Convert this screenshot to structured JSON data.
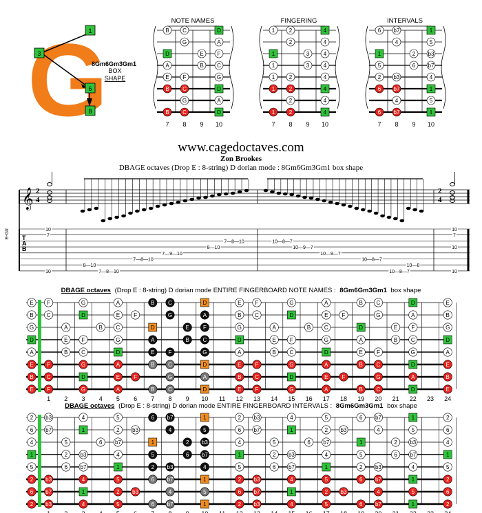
{
  "brand": {
    "letter": "G",
    "shape_label": "8Gm6Gm3Gm1",
    "box": "BOX",
    "shape": "SHAPE",
    "pointer_labels": [
      "1",
      "3",
      "6",
      "8"
    ],
    "color": "#f07d1a"
  },
  "mini_diagrams": [
    {
      "title": "NOTE NAMES",
      "frets": [
        "7",
        "8",
        "9",
        "10"
      ],
      "rows": [
        [
          [
            "w",
            "B"
          ],
          [
            "w",
            "C"
          ],
          null,
          [
            "g",
            "D"
          ]
        ],
        [
          null,
          [
            "w",
            "G"
          ],
          null,
          [
            "w",
            "A"
          ]
        ],
        [
          [
            "g",
            "D"
          ],
          null,
          [
            "w",
            "E"
          ],
          [
            "w",
            "F"
          ]
        ],
        [
          [
            "w",
            "A"
          ],
          null,
          [
            "w",
            "B"
          ],
          [
            "w",
            "C"
          ]
        ],
        [
          [
            "w",
            "E"
          ],
          [
            "w",
            "F"
          ],
          null,
          [
            "w",
            "G"
          ]
        ],
        [
          [
            "r",
            "B"
          ],
          [
            "r",
            "C"
          ],
          null,
          [
            "g",
            "D"
          ]
        ],
        [
          null,
          [
            "w",
            "G"
          ],
          null,
          [
            "w",
            "A"
          ]
        ],
        [
          [
            "r",
            "B"
          ],
          [
            "r",
            "C"
          ],
          null,
          [
            "g",
            "D"
          ]
        ]
      ]
    },
    {
      "title": "FINGERING",
      "frets": [
        "7",
        "8",
        "9",
        "10"
      ],
      "rows": [
        [
          [
            "w",
            "1"
          ],
          [
            "w",
            "2"
          ],
          null,
          [
            "g",
            "4"
          ]
        ],
        [
          null,
          [
            "w",
            "2"
          ],
          null,
          [
            "w",
            "4"
          ]
        ],
        [
          [
            "g",
            "1"
          ],
          null,
          [
            "w",
            "3"
          ],
          [
            "w",
            "4"
          ]
        ],
        [
          [
            "w",
            "1"
          ],
          null,
          [
            "w",
            "3"
          ],
          [
            "w",
            "4"
          ]
        ],
        [
          [
            "w",
            "1"
          ],
          [
            "w",
            "2"
          ],
          null,
          [
            "w",
            "4"
          ]
        ],
        [
          [
            "r",
            "1"
          ],
          [
            "r",
            "2"
          ],
          null,
          [
            "g",
            "4"
          ]
        ],
        [
          null,
          [
            "w",
            "2"
          ],
          null,
          [
            "w",
            "4"
          ]
        ],
        [
          [
            "r",
            "1"
          ],
          [
            "r",
            "2"
          ],
          null,
          [
            "g",
            "4"
          ]
        ]
      ]
    },
    {
      "title": "INTERVALS",
      "frets": [
        "7",
        "8",
        "9",
        "10"
      ],
      "rows": [
        [
          [
            "w",
            "6"
          ],
          [
            "w",
            "b7"
          ],
          null,
          [
            "g",
            "1"
          ]
        ],
        [
          null,
          [
            "w",
            "4"
          ],
          null,
          [
            "w",
            "5"
          ]
        ],
        [
          [
            "g",
            "1"
          ],
          null,
          [
            "w",
            "2"
          ],
          [
            "w",
            "b3"
          ]
        ],
        [
          [
            "w",
            "5"
          ],
          null,
          [
            "w",
            "6"
          ],
          [
            "w",
            "b7"
          ]
        ],
        [
          [
            "w",
            "2"
          ],
          [
            "w",
            "b3"
          ],
          null,
          [
            "w",
            "4"
          ]
        ],
        [
          [
            "r",
            "6"
          ],
          [
            "r",
            "b7"
          ],
          null,
          [
            "g",
            "1"
          ]
        ],
        [
          null,
          [
            "w",
            "4"
          ],
          null,
          [
            "w",
            "5"
          ]
        ],
        [
          [
            "r",
            "6"
          ],
          [
            "r",
            "b7"
          ],
          null,
          [
            "g",
            "1"
          ]
        ]
      ]
    }
  ],
  "header": {
    "site": "www.cagedoctaves.com",
    "author": "Zon Brookes",
    "subtitle": "DBAGE octaves (Drop E : 8-string) D dorian mode : 8Gm6Gm3Gm1 box shape"
  },
  "score": {
    "time_signature": [
      "2",
      "4"
    ],
    "tuning_label": "E-Gtr",
    "tab_letters": [
      "T",
      "A",
      "B"
    ],
    "tab_rows": [
      {
        "frets": [
          "10",
          "10"
        ]
      },
      {
        "frets": [
          "7",
          "7"
        ]
      },
      {
        "frets": [
          "7—8—10",
          "10—8—7"
        ]
      },
      {
        "frets": [
          "8—10",
          "10—9—7",
          "10"
        ]
      },
      {
        "frets": [
          "7—9—10",
          "10—9—7"
        ]
      },
      {
        "frets": [
          "7—8—10",
          "10—8—7"
        ]
      },
      {
        "frets": [
          "8—10",
          "10—8"
        ]
      },
      {
        "frets": [
          "10",
          "7—8—10",
          "10—8—7",
          "10"
        ]
      }
    ]
  },
  "board1": {
    "title_prefix": "DBAGE octaves",
    "title_mode": "(Drop E : 8-string) D dorian mode ENTIRE FINGERBOARD NOTE NAMES :",
    "title_shape": "8Gm6Gm3Gm1",
    "title_suffix": "box shape",
    "rows": [
      [
        "E",
        "F",
        "G",
        "A",
        "B",
        "C",
        "D",
        "E",
        "F",
        "G",
        "A",
        "B",
        "C",
        "D",
        "E"
      ],
      [
        "B",
        "C",
        "D",
        "E",
        "F",
        "G",
        "A",
        "B",
        "C",
        "D",
        "E",
        "F",
        "G",
        "A",
        "B"
      ],
      [
        "G",
        "A",
        "B",
        "C",
        "D",
        "E",
        "F",
        "G",
        "A",
        "B",
        "C",
        "D",
        "E",
        "F",
        "G"
      ],
      [
        "D",
        "E",
        "F",
        "G",
        "A",
        "B",
        "C",
        "D",
        "E",
        "F",
        "G",
        "A",
        "B",
        "C",
        "D"
      ],
      [
        "A",
        "B",
        "C",
        "D",
        "E",
        "F",
        "G",
        "A",
        "B",
        "C",
        "D",
        "E",
        "F",
        "G",
        "A"
      ],
      [
        "E",
        "F",
        "G",
        "A",
        "B",
        "C",
        "D",
        "E",
        "F",
        "G",
        "A",
        "B",
        "C",
        "D",
        "E"
      ],
      [
        "B",
        "C",
        "D",
        "E",
        "F",
        "G",
        "A",
        "B",
        "C",
        "D",
        "E",
        "F",
        "G",
        "A",
        "B"
      ],
      [
        "E",
        "F",
        "G",
        "A",
        "B",
        "C",
        "D",
        "E",
        "F",
        "G",
        "A",
        "B",
        "C",
        "D",
        "E"
      ]
    ]
  },
  "board2": {
    "title_prefix": "DBAGE octaves",
    "title_mode": "(Drop E : 8-string) D dorian mode ENTIRE FINGERBOARD INTERVALS :",
    "title_shape": "8Gm6Gm3Gm1",
    "title_suffix": "box shape",
    "rows": [
      [
        "2",
        "b3",
        "4",
        "5",
        "6",
        "b7",
        "1",
        "2",
        "b3",
        "4",
        "5",
        "6",
        "b7",
        "1",
        "2"
      ],
      [
        "6",
        "b7",
        "1",
        "2",
        "b3",
        "4",
        "5",
        "6",
        "b7",
        "1",
        "2",
        "b3",
        "4",
        "5",
        "6"
      ],
      [
        "4",
        "5",
        "6",
        "b7",
        "1",
        "2",
        "b3",
        "4",
        "5",
        "6",
        "b7",
        "1",
        "2",
        "b3",
        "4"
      ],
      [
        "1",
        "2",
        "b3",
        "4",
        "5",
        "6",
        "b7",
        "1",
        "2",
        "b3",
        "4",
        "5",
        "6",
        "b7",
        "1"
      ],
      [
        "5",
        "6",
        "b7",
        "1",
        "2",
        "b3",
        "4",
        "5",
        "6",
        "b7",
        "1",
        "2",
        "b3",
        "4",
        "5"
      ],
      [
        "2",
        "b3",
        "4",
        "5",
        "6",
        "b7",
        "1",
        "2",
        "b3",
        "4",
        "5",
        "6",
        "b7",
        "1",
        "2"
      ],
      [
        "6",
        "b7",
        "1",
        "2",
        "b3",
        "4",
        "5",
        "6",
        "b7",
        "1",
        "2",
        "b3",
        "4",
        "5",
        "6"
      ],
      [
        "2",
        "b3",
        "4",
        "5",
        "6",
        "b7",
        "1",
        "2",
        "b3",
        "4",
        "5",
        "6",
        "b7",
        "1",
        "2"
      ]
    ]
  },
  "fret_numbers": [
    "1",
    "2",
    "3",
    "4",
    "5",
    "6",
    "7",
    "8",
    "9",
    "10",
    "11",
    "12",
    "13",
    "14",
    "15",
    "16",
    "17",
    "18",
    "19",
    "20",
    "21",
    "22",
    "23",
    "24"
  ],
  "colors": {
    "root_green": "#2fc33a",
    "red": "#e8231e",
    "orange": "#f08c1e",
    "black": "#111111",
    "grey": "#777777"
  }
}
